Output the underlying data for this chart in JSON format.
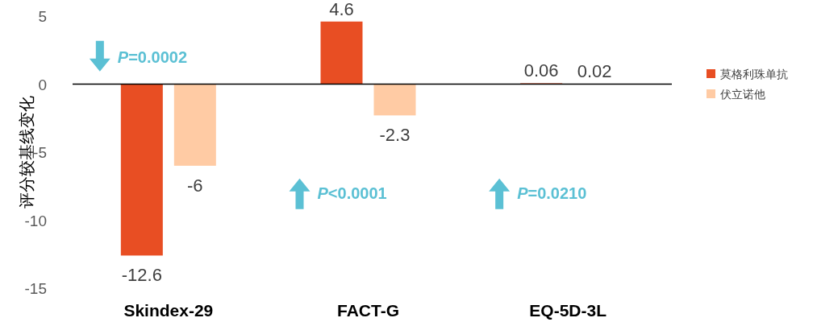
{
  "chart_data": {
    "type": "bar",
    "ylabel": "评分较基线变化",
    "categories": [
      "Skindex-29",
      "FACT-G",
      "EQ-5D-3L"
    ],
    "series": [
      {
        "name": "莫格利珠单抗",
        "color": "#e84e23",
        "values": [
          -12.6,
          4.6,
          0.06
        ]
      },
      {
        "name": "伏立诺他",
        "color": "#ffcba4",
        "values": [
          -6,
          -2.3,
          0.02
        ]
      }
    ],
    "ylim": [
      -15,
      5
    ],
    "yticks": [
      -15,
      -10,
      -5,
      0,
      5
    ],
    "legend": "right",
    "data_labels": true,
    "annotations": [
      "P=0.0002",
      "P<0.0001",
      "P=0.0210"
    ]
  }
}
